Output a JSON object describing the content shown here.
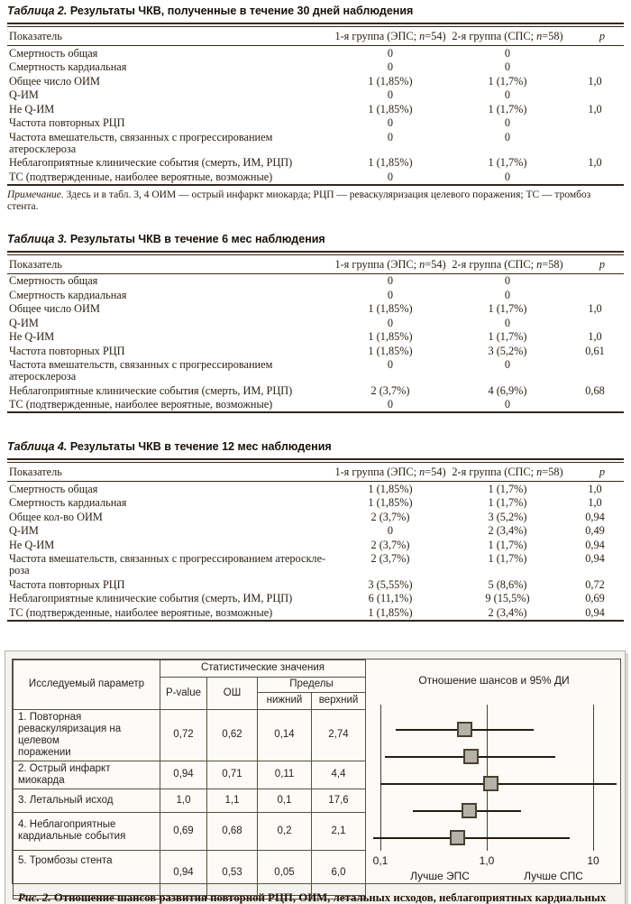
{
  "tables": [
    {
      "title_label": "Таблица 2.",
      "title_text": "Результаты ЧКВ, полученные в течение 30 дней наблюдения",
      "columns": [
        "Показатель",
        "1-я группа (ЭПС; *n*=54)",
        "2-я группа (СПС; *n*=58)",
        "*p*"
      ],
      "rows": [
        [
          "Смертность общая",
          "0",
          "0",
          ""
        ],
        [
          "Смертность кардиальная",
          "0",
          "0",
          ""
        ],
        [
          "Общее число ОИМ",
          "1 (1,85%)",
          "1 (1,7%)",
          "1,0"
        ],
        [
          "Q-ИМ",
          "0",
          "0",
          ""
        ],
        [
          "Не Q-ИМ",
          "1 (1,85%)",
          "1 (1,7%)",
          "1,0"
        ],
        [
          "Частота повторных РЦП",
          "0",
          "0",
          ""
        ],
        [
          "Частота вмешательств, связанных с прогрессированием атеросклероза",
          "0",
          "0",
          ""
        ],
        [
          "Неблагоприятные клинические события (смерть, ИМ, РЦП)",
          "1 (1,85%)",
          "1 (1,7%)",
          "1,0"
        ],
        [
          "ТС (подтвержденные, наиболее вероятные, возможные)",
          "0",
          "0",
          ""
        ]
      ],
      "note_label": "Примечание.",
      "note_text": " Здесь и в табл. 3, 4 ОИМ — острый инфаркт миокарда; РЦП — реваскуляризация целевого поражения; ТС — тромбоз стента."
    },
    {
      "title_label": "Таблица 3.",
      "title_text": "Результаты ЧКВ в течение 6 мес наблюдения",
      "columns": [
        "Показатель",
        "1-я группа (ЭПС; *n*=54)",
        "2-я группа (СПС; *n*=58)",
        "*p*"
      ],
      "rows": [
        [
          "Смертность общая",
          "0",
          "0",
          ""
        ],
        [
          "Смертность кардиальная",
          "0",
          "0",
          ""
        ],
        [
          "Общее число ОИМ",
          "1 (1,85%)",
          "1 (1,7%)",
          "1,0"
        ],
        [
          "Q-ИМ",
          "0",
          "0",
          ""
        ],
        [
          "Не Q-ИМ",
          "1 (1,85%)",
          "1 (1,7%)",
          "1,0"
        ],
        [
          "Частота повторных РЦП",
          "1 (1,85%)",
          "3 (5,2%)",
          "0,61"
        ],
        [
          "Частота вмешательств, связанных с прогрессированием атеросклероза",
          "0",
          "0",
          ""
        ],
        [
          "Неблагоприятные клинические события (смерть, ИМ, РЦП)",
          "2 (3,7%)",
          "4 (6,9%)",
          "0,68"
        ],
        [
          "ТС (подтвержденные, наиболее вероятные, возможные)",
          "0",
          "0",
          ""
        ]
      ]
    },
    {
      "title_label": "Таблица 4.",
      "title_text": "Результаты ЧКВ в течение 12 мес наблюдения",
      "columns": [
        "Показатель",
        "1-я группа (ЭПС; *n*=54)",
        "2-я группа (СПС; *n*=58)",
        "*p*"
      ],
      "rows": [
        [
          "Смертность общая",
          "1 (1,85%)",
          "1 (1,7%)",
          "1,0"
        ],
        [
          "Смертность кардиальная",
          "1 (1,85%)",
          "1 (1,7%)",
          "1,0"
        ],
        [
          "Общее кол-во ОИМ",
          "2 (3,7%)",
          "3 (5,2%)",
          "0,94"
        ],
        [
          "Q-ИМ",
          "0",
          "2 (3,4%)",
          "0,49"
        ],
        [
          "Не Q-ИМ",
          "2 (3,7%)",
          "1 (1,7%)",
          "0,94"
        ],
        [
          "Частота вмешательств, связанных с прогрессированием атероскле-\nроза",
          "2 (3,7%)",
          "1 (1,7%)",
          "0,94"
        ],
        [
          "Частота повторных РЦП",
          "3 (5,55%)",
          "5 (8,6%)",
          "0,72"
        ],
        [
          "Неблагоприятные клинические события (смерть, ИМ, РЦП)",
          "6 (11,1%)",
          "9 (15,5%)",
          "0,69"
        ],
        [
          "ТС (подтвержденные, наиболее вероятные, возможные)",
          "1 (1,85%)",
          "2 (3,4%)",
          "0,94"
        ]
      ]
    }
  ],
  "figure": {
    "stat_table": {
      "param_header": "Исследуемый параметр",
      "stat_header": "Статистические значения",
      "col_pvalue": "P-value",
      "col_or": "ОШ",
      "limits_header": "Пределы",
      "col_lower": "нижний",
      "col_upper": "верхний",
      "rows": [
        {
          "param": "1. Повторная\nреваскуляризация на целевом\nпоражении",
          "p": "0,72",
          "or": "0,62",
          "lower": "0,14",
          "upper": "2,74"
        },
        {
          "param": "2. Острый инфаркт миокарда",
          "p": "0,94",
          "or": "0,71",
          "lower": "0,11",
          "upper": "4,4"
        },
        {
          "param": "3. Летальный исход",
          "p": "1,0",
          "or": "1,1",
          "lower": "0,1",
          "upper": "17,6"
        },
        {
          "param": "4. Неблагоприятные\nкардиальные события",
          "p": "0,69",
          "or": "0,68",
          "lower": "0,2",
          "upper": "2,1"
        },
        {
          "param": "5. Тромбозы стента",
          "p": "0,94",
          "or": "0,53",
          "lower": "0,05",
          "upper": "6,0"
        }
      ]
    },
    "caption_label": "Рис. 2.",
    "caption_text": " Отношение шансов развития повторной РЦП, ОИМ, летальных исходов, неблагоприятных кардиальных событий и тромбозов стентов с использованием ЭПС и СПС у пациентов с ИБС в сочетании с СД."
  },
  "chart_data": {
    "type": "scatter",
    "subtype": "forest-plot",
    "title": "Отношение шансов и 95% ДИ",
    "x_scale": "log",
    "xlim": [
      0.1,
      10
    ],
    "x_ticks": [
      "0,1",
      "1,0",
      "10"
    ],
    "x_tick_values": [
      0.1,
      1.0,
      10
    ],
    "direction_labels": {
      "left": "Лучше ЭПС",
      "right": "Лучше СПС"
    },
    "categories": [
      "Повторная реваскуляризация на целевом поражении",
      "Острый инфаркт миокарда",
      "Летальный исход",
      "Неблагоприятные кардиальные события",
      "Тромбозы стента"
    ],
    "series": [
      {
        "name": "Отношение шансов (95% ДИ)",
        "or": [
          0.62,
          0.71,
          1.1,
          0.68,
          0.53
        ],
        "ci_low": [
          0.14,
          0.11,
          0.1,
          0.2,
          0.05
        ],
        "ci_high": [
          2.74,
          4.4,
          17.6,
          2.1,
          6.0
        ],
        "p_values": [
          0.72,
          0.94,
          1.0,
          0.69,
          0.94
        ]
      }
    ],
    "marker": {
      "shape": "square",
      "fill": "#b5b1a8",
      "border": "#47412f"
    }
  },
  "colors": {
    "ink": "#2b2014",
    "rule": "#33271a",
    "panel_bg": "#f4f3ef",
    "panel_border": "#b5b2ac"
  }
}
